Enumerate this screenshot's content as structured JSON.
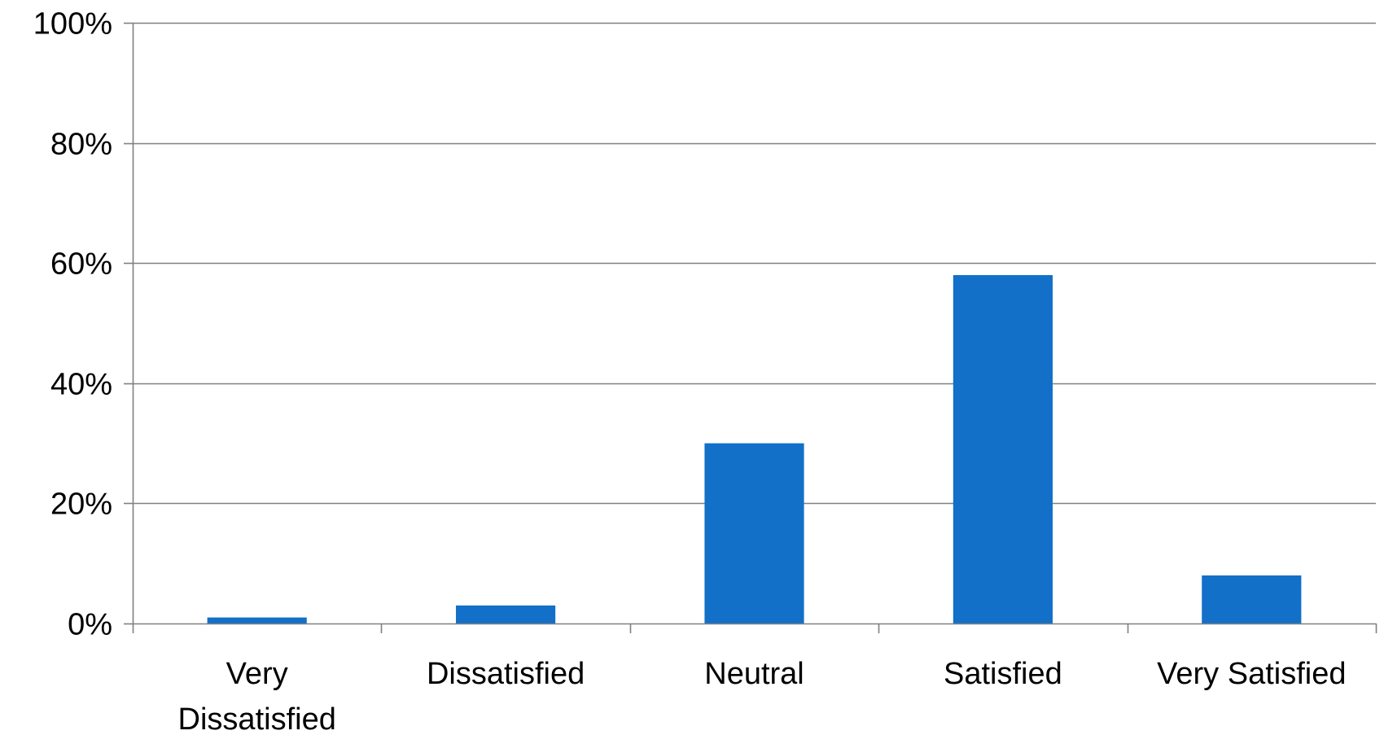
{
  "chart_data": {
    "type": "bar",
    "categories": [
      "Very Dissatisfied",
      "Dissatisfied",
      "Neutral",
      "Satisfied",
      "Very Satisfied"
    ],
    "category_lines": [
      [
        "Very",
        "Dissatisfied"
      ],
      [
        "Dissatisfied"
      ],
      [
        "Neutral"
      ],
      [
        "Satisfied"
      ],
      [
        "Very Satisfied"
      ]
    ],
    "values": [
      1,
      3,
      30,
      58,
      8
    ],
    "ylim": [
      0,
      100
    ],
    "yticks": [
      0,
      20,
      40,
      60,
      80,
      100
    ],
    "ytick_labels": [
      "0%",
      "20%",
      "40%",
      "60%",
      "80%",
      "100%"
    ],
    "y_unit": "percent",
    "grid": true,
    "legend": "none",
    "title": "",
    "xlabel": "",
    "ylabel": "",
    "colors": {
      "bar": "#1270C8",
      "grid": "#808080",
      "axis": "#808080",
      "text": "#000000"
    }
  }
}
